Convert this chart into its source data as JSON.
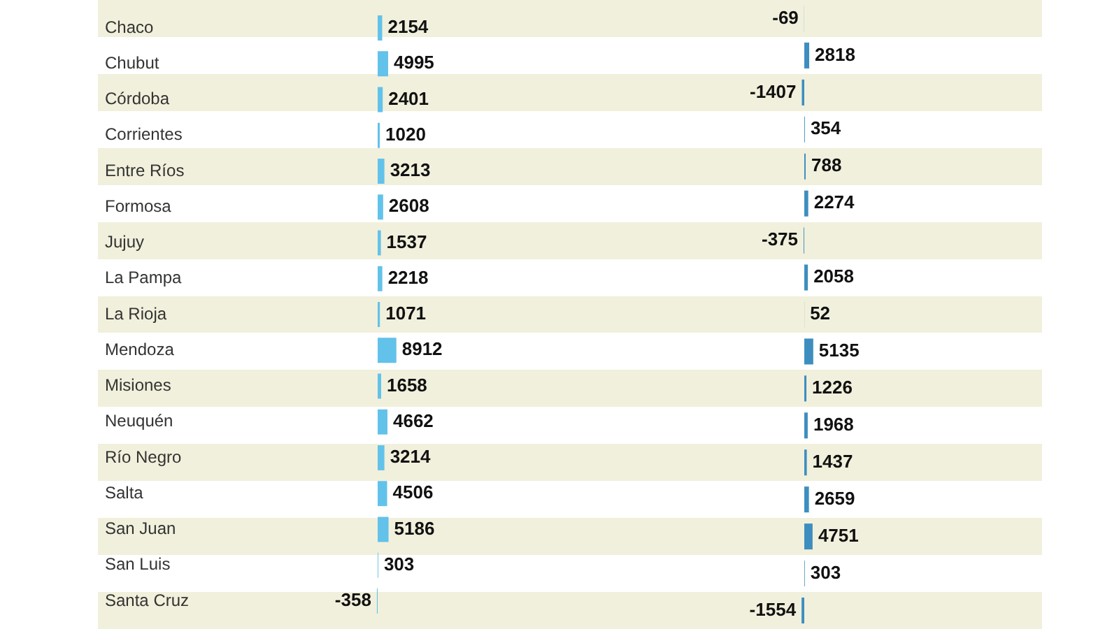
{
  "chart_data": [
    {
      "type": "bar",
      "orientation": "horizontal",
      "categories": [
        "Chaco",
        "Chubut",
        "Córdoba",
        "Corrientes",
        "Entre Ríos",
        "Formosa",
        "Jujuy",
        "La Pampa",
        "La Rioja",
        "Mendoza",
        "Misiones",
        "Neuquén",
        "Río Negro",
        "Salta",
        "San Juan",
        "San Luis",
        "Santa Cruz"
      ],
      "series": [
        {
          "color": "#62c2ea",
          "values": [
            2154,
            4995,
            2401,
            1020,
            3213,
            2608,
            1537,
            2218,
            1071,
            8912,
            1658,
            4662,
            3214,
            4506,
            5186,
            303,
            -358
          ]
        }
      ],
      "data_labels": true,
      "tick_labels": "y"
    },
    {
      "type": "bar",
      "orientation": "horizontal",
      "categories": [
        null,
        null,
        null,
        null,
        null,
        null,
        null,
        null,
        null,
        null,
        null,
        null,
        null,
        null,
        null,
        null,
        null
      ],
      "series": [
        {
          "color": "#3d8ebf",
          "values": [
            -69,
            2818,
            -1407,
            354,
            788,
            2274,
            -375,
            2058,
            52,
            5135,
            1226,
            1968,
            1437,
            2659,
            4751,
            303,
            -1554
          ]
        }
      ],
      "data_labels": true,
      "tick_labels": false
    }
  ]
}
